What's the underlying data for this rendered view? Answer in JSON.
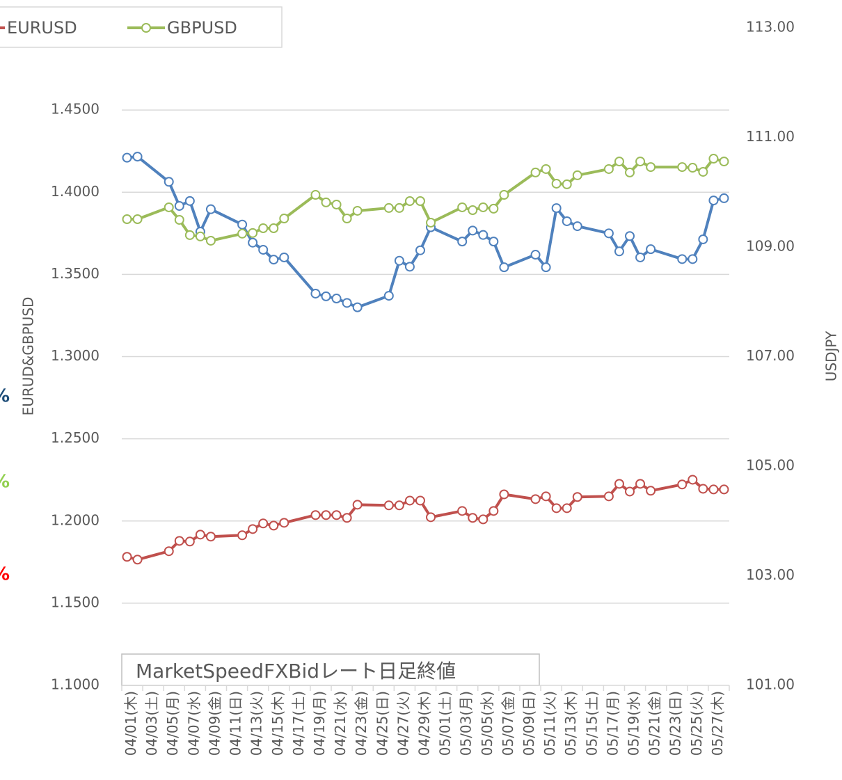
{
  "chart_data": {
    "type": "line",
    "y_label": "EURUD&GBPUSD",
    "y2_label": "USDJPY",
    "annotation": "MarketSpeedFXBidレート日足終値",
    "side_notes": [
      {
        "text": "%",
        "color": "#1f4e79"
      },
      {
        "text": "%",
        "color": "#92d050"
      },
      {
        "text": "%",
        "color": "#ff0000"
      }
    ],
    "categories": [
      "04/01(木)",
      null,
      "04/03(土)",
      null,
      "04/05(月)",
      null,
      "04/07(水)",
      null,
      "04/09(金)",
      null,
      "04/11(日)",
      null,
      "04/13(火)",
      null,
      "04/15(木)",
      null,
      "04/17(土)",
      null,
      "04/19(月)",
      null,
      "04/21(水)",
      null,
      "04/23(金)",
      null,
      "04/25(日)",
      null,
      "04/27(火)",
      null,
      "04/29(木)",
      null,
      "05/01(土)",
      null,
      "05/03(月)",
      null,
      "05/05(水)",
      null,
      "05/07(金)",
      null,
      "05/09(日)",
      null,
      "05/11(火)",
      null,
      "05/13(木)",
      null,
      "05/15(土)",
      null,
      "05/17(月)",
      null,
      "05/19(水)",
      null,
      "05/21(金)",
      null,
      "05/23(日)",
      null,
      "05/25(火)",
      null,
      "05/27(木)",
      null
    ],
    "series": [
      {
        "name": "USDJPY",
        "color": "#4f81bd",
        "axis": "y2",
        "values": [
          110.63,
          110.65,
          null,
          null,
          110.19,
          109.75,
          109.84,
          109.28,
          109.69,
          null,
          null,
          109.41,
          109.08,
          108.95,
          108.77,
          108.81,
          null,
          null,
          108.15,
          108.1,
          108.06,
          107.98,
          107.9,
          null,
          null,
          108.11,
          108.75,
          108.64,
          108.94,
          109.36,
          null,
          null,
          109.1,
          109.3,
          109.22,
          109.1,
          108.63,
          null,
          null,
          108.86,
          108.63,
          109.71,
          109.47,
          109.38,
          null,
          null,
          109.25,
          108.92,
          109.2,
          108.81,
          108.96,
          null,
          null,
          108.78,
          108.78,
          109.14,
          109.85,
          109.89
        ]
      },
      {
        "name": "EURUSD",
        "color": "#c0504d",
        "values": [
          1.1782,
          1.1765,
          null,
          null,
          1.1816,
          1.1879,
          1.1875,
          1.1917,
          1.1905,
          null,
          null,
          1.1913,
          1.1951,
          1.1985,
          1.1972,
          1.1989,
          null,
          null,
          1.2036,
          1.2036,
          1.2036,
          1.2019,
          1.2099,
          null,
          null,
          1.2095,
          1.2095,
          1.2124,
          1.2124,
          1.2023,
          null,
          null,
          1.2061,
          1.2019,
          1.201,
          1.2061,
          1.2162,
          null,
          null,
          1.2133,
          1.215,
          1.2078,
          1.2078,
          1.2146,
          null,
          null,
          1.215,
          1.2226,
          1.2179,
          1.2226,
          1.2184,
          null,
          null,
          1.2222,
          1.2251,
          1.2196,
          1.2192,
          1.2192
        ]
      },
      {
        "name": "GBPUSD",
        "color": "#9bbb59",
        "values": [
          1.3836,
          1.3836,
          null,
          null,
          1.3908,
          1.3832,
          1.3739,
          1.3731,
          1.3705,
          null,
          null,
          1.3748,
          1.3752,
          1.3781,
          1.3781,
          1.384,
          null,
          null,
          1.3984,
          1.3938,
          1.3925,
          1.384,
          1.3887,
          null,
          null,
          1.3904,
          1.3904,
          1.3946,
          1.3946,
          1.3815,
          null,
          null,
          1.3908,
          1.3891,
          1.3908,
          1.39,
          1.3984,
          null,
          null,
          1.412,
          1.4141,
          1.4052,
          1.4048,
          1.4103,
          null,
          null,
          1.4141,
          1.4187,
          1.412,
          1.4187,
          1.4153,
          null,
          null,
          1.4153,
          1.4149,
          1.4124,
          1.4204,
          1.4187
        ]
      }
    ],
    "ylim": [
      1.1,
      1.5
    ],
    "yticks": [
      {
        "value": 1.1,
        "label": "1.1000"
      },
      {
        "value": 1.15,
        "label": "1.1500"
      },
      {
        "value": 1.2,
        "label": "1.2000"
      },
      {
        "value": 1.25,
        "label": "1.2500"
      },
      {
        "value": 1.3,
        "label": "1.3000"
      },
      {
        "value": 1.35,
        "label": "1.3500"
      },
      {
        "value": 1.4,
        "label": "1.4000"
      },
      {
        "value": 1.45,
        "label": "1.4500"
      }
    ],
    "y2lim": [
      101,
      113
    ],
    "y2ticks": [
      {
        "value": 101,
        "label": "101.00"
      },
      {
        "value": 103,
        "label": "103.00"
      },
      {
        "value": 105,
        "label": "105.00"
      },
      {
        "value": 107,
        "label": "107.00"
      },
      {
        "value": 109,
        "label": "109.00"
      },
      {
        "value": 111,
        "label": "111.00"
      },
      {
        "value": 113,
        "label": "113.00"
      }
    ],
    "grid": true
  }
}
